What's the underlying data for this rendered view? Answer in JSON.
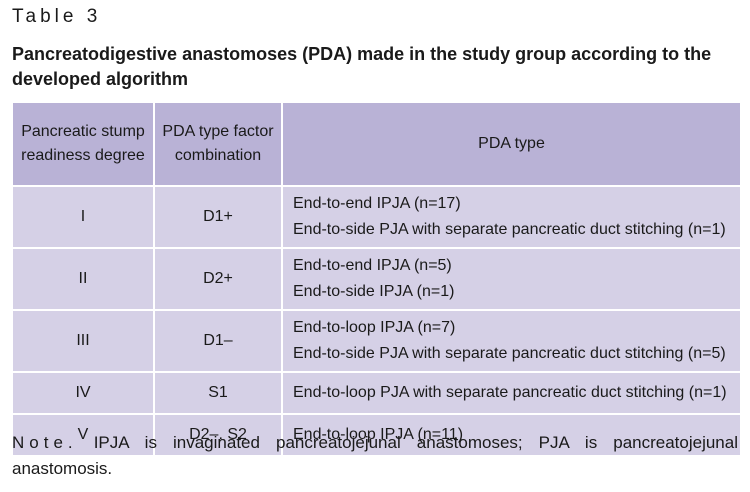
{
  "table_label": "Table 3",
  "title": "Pancreatodigestive anastomoses (PDA) made in the study group according to the developed algorithm",
  "headers": {
    "col1": "Pancreatic stump readiness degree",
    "col2": "PDA type factor combination",
    "col3": "PDA type"
  },
  "rows": [
    {
      "degree": "I",
      "factor": "D1+",
      "types": [
        "End-to-end IPJA (n=17)",
        "End-to-side PJA with separate pancreatic duct stitching (n=1)"
      ]
    },
    {
      "degree": "II",
      "factor": "D2+",
      "types": [
        "End-to-end IPJA (n=5)",
        "End-to-side IPJA (n=1)"
      ]
    },
    {
      "degree": "III",
      "factor": "D1–",
      "types": [
        "End-to-loop IPJA (n=7)",
        "End-to-side PJA with separate pancreatic duct stitching (n=5)"
      ]
    },
    {
      "degree": "IV",
      "factor": "S1",
      "types": [
        "End-to-loop PJA with separate pancreatic duct stitching (n=1)"
      ]
    },
    {
      "degree": "V",
      "factor": "D2–, S2",
      "types": [
        "End-to-loop IPJA (n=11)"
      ]
    }
  ],
  "note": {
    "label": "Note.",
    "text": "IPJA is invaginated pancreatojejunal anastomoses; PJA is pancreatojejunal anastomosis."
  },
  "colors": {
    "header_bg": "#b9b2d6",
    "cell_bg": "#d5d0e6"
  }
}
